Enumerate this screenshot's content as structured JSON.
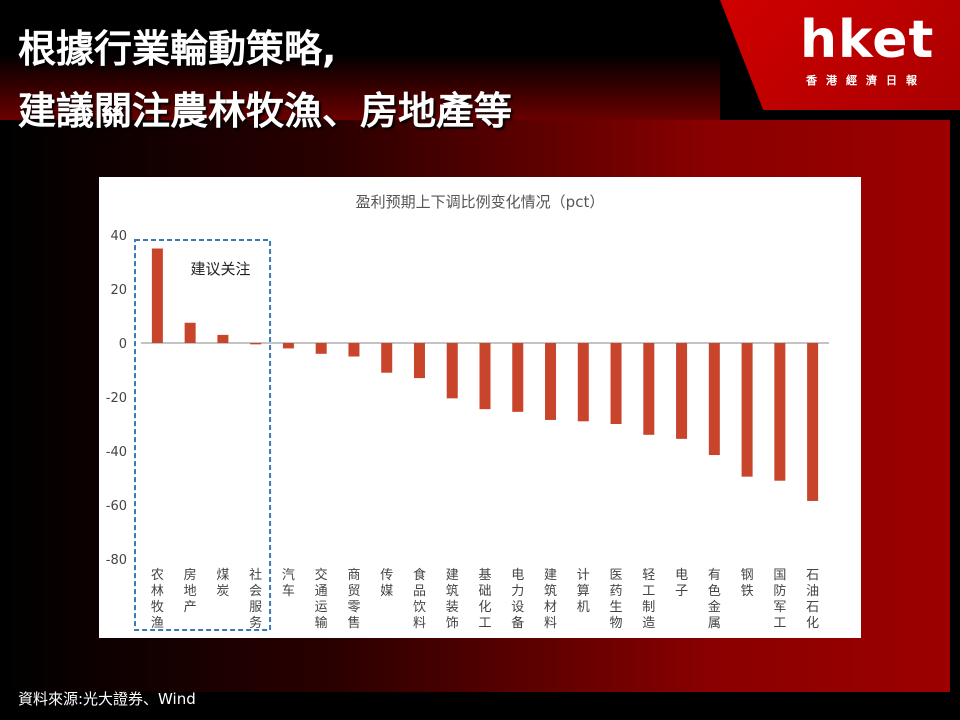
{
  "header": {
    "title_line1": "根據行業輪動策略,",
    "title_line2": "建議關注農林牧漁、房地產等",
    "logo": "hket",
    "logo_sub": "香港經濟日報"
  },
  "source": "資料來源:光大證券、Wind",
  "chart_data": {
    "type": "bar",
    "title": "盈利预期上下调比例变化情况（pct）",
    "xlabel": "",
    "ylabel": "",
    "ylim": [
      -80,
      40
    ],
    "yticks": [
      "40",
      "20",
      "0",
      "-20",
      "-40",
      "-60",
      "-80"
    ],
    "categories": [
      "农林牧渔",
      "房地产",
      "煤炭",
      "社会服务",
      "汽车",
      "交通运输",
      "商贸零售",
      "传媒",
      "食品饮料",
      "建筑装饰",
      "基础化工",
      "电力设备",
      "建筑材料",
      "计算机",
      "医药生物",
      "轻工制造",
      "电子",
      "有色金属",
      "钢铁",
      "国防军工",
      "石油石化"
    ],
    "values": [
      35,
      7.5,
      3,
      -0.5,
      -2,
      -4,
      -5,
      -11,
      -13,
      -20.5,
      -24.5,
      -25.5,
      -28.5,
      -29,
      -30,
      -34,
      -35.5,
      -41.5,
      -49.5,
      -51,
      -58.5
    ],
    "highlight_label": "建议关注",
    "highlight_count": 4,
    "colors": {
      "bar": "#c8442a",
      "highlight_border": "#3a7ab8"
    }
  }
}
